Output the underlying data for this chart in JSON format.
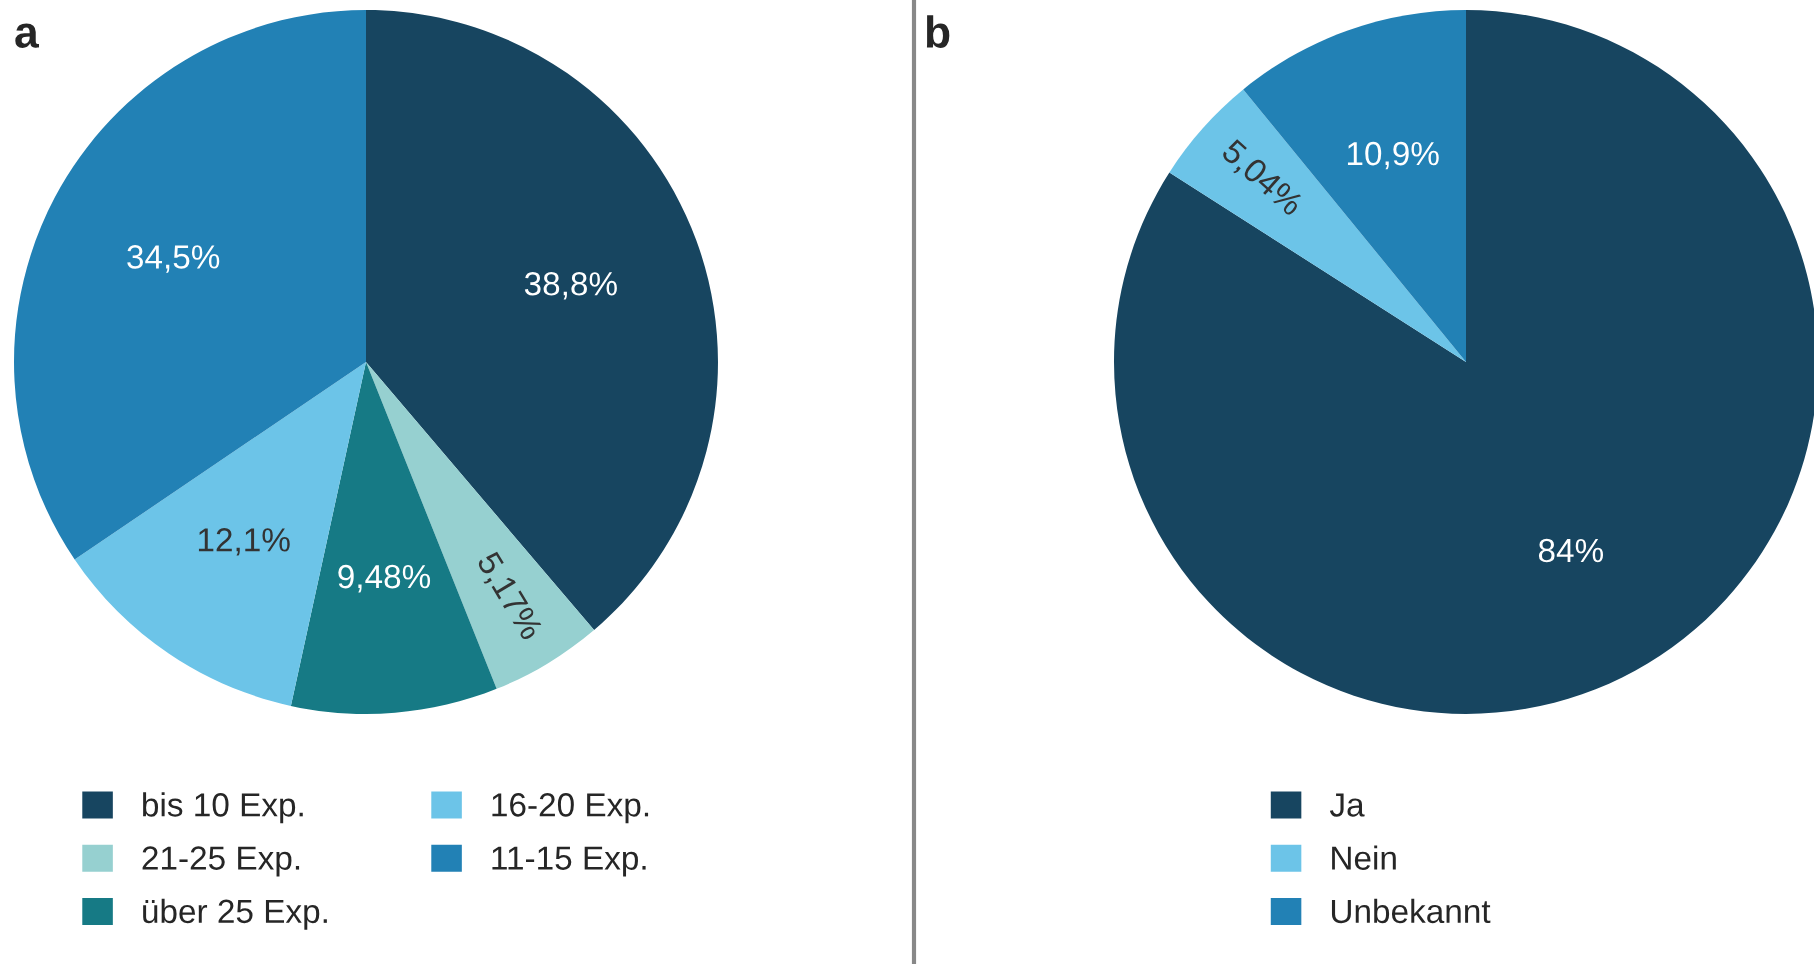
{
  "chart_data": [
    {
      "type": "pie",
      "title": "a",
      "categories": [
        "bis 10 Exp.",
        "21-25 Exp.",
        "über 25 Exp.",
        "16-20 Exp.",
        "11-15 Exp."
      ],
      "values": [
        38.8,
        5.17,
        9.48,
        12.1,
        34.5
      ],
      "colors": [
        "#174560",
        "#96d0d0",
        "#167a85",
        "#6cc4e8",
        "#2281b5"
      ],
      "value_labels": [
        "38,8%",
        "5,17%",
        "9,48%",
        "12,1%",
        "34,5%"
      ],
      "legend": "bottom"
    },
    {
      "type": "pie",
      "title": "b",
      "categories": [
        "Ja",
        "Nein",
        "Unbekannt"
      ],
      "values": [
        84,
        5.04,
        10.9
      ],
      "colors": [
        "#174560",
        "#6cc4e8",
        "#2281b5"
      ],
      "value_labels": [
        "84%",
        "5,04%",
        "10,9%"
      ],
      "legend": "bottom"
    }
  ]
}
